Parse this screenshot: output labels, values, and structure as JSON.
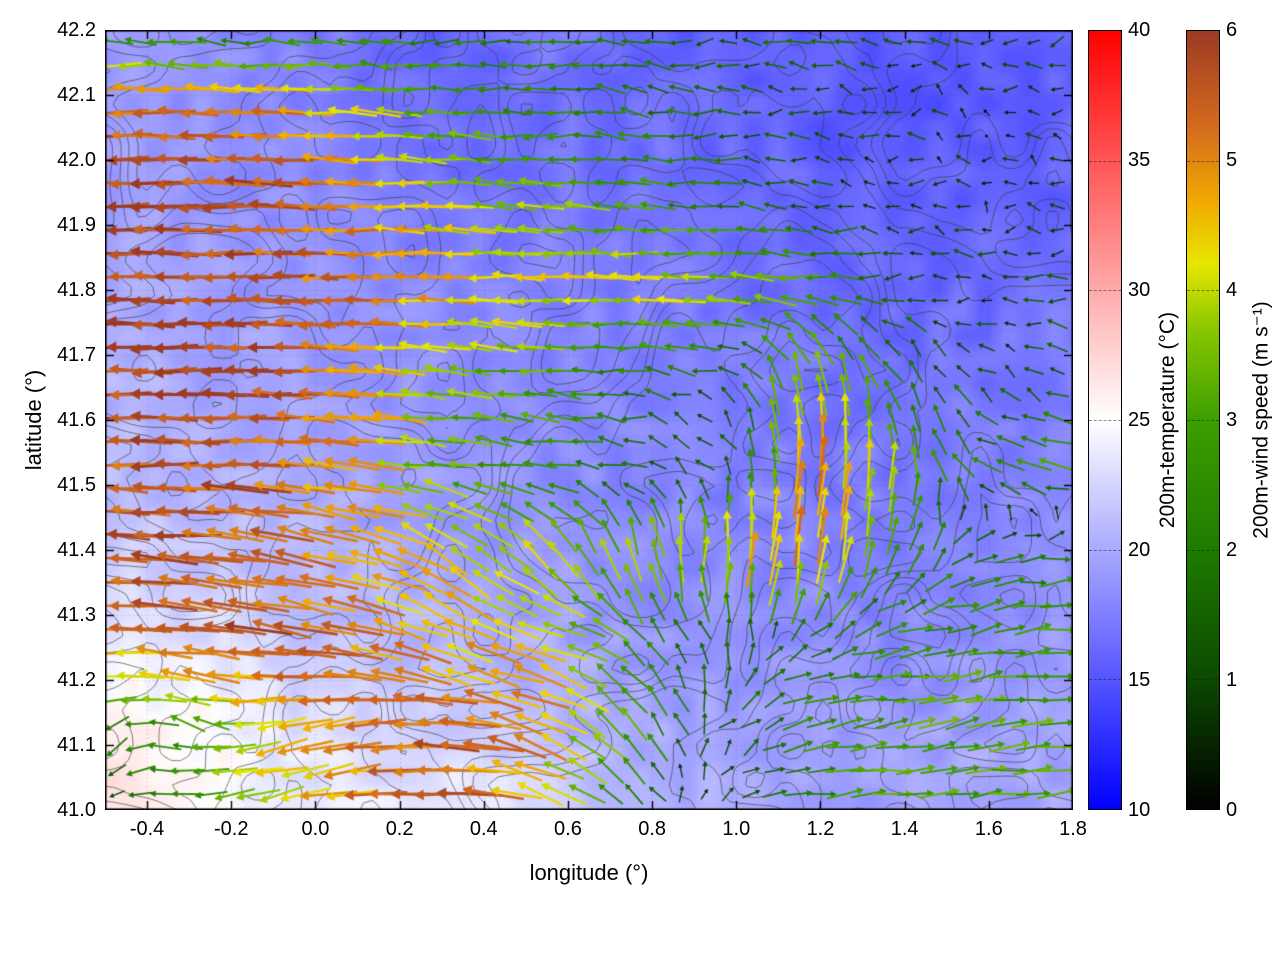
{
  "chart_data": {
    "type": "heatmap",
    "subtype": "vector-field-map-with-contours",
    "title": "",
    "xlabel": "longitude (°)",
    "ylabel": "latitude (°)",
    "xlim": [
      -0.5,
      1.8
    ],
    "ylim": [
      41.0,
      42.2
    ],
    "x_ticks": [
      -0.4,
      -0.2,
      0.0,
      0.2,
      0.4,
      0.6,
      0.8,
      1.0,
      1.2,
      1.4,
      1.6,
      1.8
    ],
    "y_ticks": [
      41.0,
      41.1,
      41.2,
      41.3,
      41.4,
      41.5,
      41.6,
      41.7,
      41.8,
      41.9,
      42.0,
      42.1,
      42.2
    ],
    "grid": true,
    "colorbars": [
      {
        "id": "temperature",
        "label": "200m-temperature (°C)",
        "min": 10,
        "max": 40,
        "ticks": [
          10,
          15,
          20,
          25,
          30,
          35,
          40
        ],
        "stops": [
          [
            0.0,
            "#0000ff"
          ],
          [
            0.5,
            "#ffffff"
          ],
          [
            1.0,
            "#ff0000"
          ]
        ]
      },
      {
        "id": "wind-speed",
        "label": "200m-wind speed (m s⁻¹)",
        "min": 0,
        "max": 6,
        "ticks": [
          0,
          1,
          2,
          3,
          4,
          5,
          6
        ],
        "stops": [
          [
            0.0,
            "#000000"
          ],
          [
            0.17,
            "#0c4a00"
          ],
          [
            0.33,
            "#1e7a00"
          ],
          [
            0.5,
            "#3c9e00"
          ],
          [
            0.62,
            "#8cc800"
          ],
          [
            0.7,
            "#e6e600"
          ],
          [
            0.78,
            "#f0aa00"
          ],
          [
            0.88,
            "#d2691e"
          ],
          [
            1.0,
            "#9c3a24"
          ]
        ]
      }
    ],
    "temperature_field": {
      "units": "degC",
      "lon_range": [
        -0.5,
        1.8
      ],
      "lat_range": [
        41.0,
        42.2
      ],
      "order": "north-to-south",
      "values": [
        [
          19.0,
          18.5,
          18.0,
          16.5,
          16.0,
          17.0,
          16.0,
          15.5,
          16.0,
          15.5,
          15.0,
          15.5
        ],
        [
          19.0,
          18.5,
          18.0,
          17.0,
          16.0,
          16.5,
          16.5,
          16.0,
          15.5,
          15.0,
          15.5,
          16.0
        ],
        [
          19.5,
          19.0,
          18.5,
          18.0,
          17.5,
          17.0,
          17.0,
          16.5,
          16.0,
          15.5,
          16.0,
          16.0
        ],
        [
          20.0,
          19.5,
          19.0,
          18.5,
          18.0,
          18.0,
          17.5,
          17.0,
          16.5,
          16.0,
          16.5,
          17.0
        ],
        [
          20.5,
          20.0,
          19.5,
          19.0,
          18.5,
          18.0,
          18.0,
          17.5,
          17.0,
          16.5,
          17.0,
          17.5
        ],
        [
          21.0,
          20.5,
          20.0,
          19.5,
          19.0,
          18.5,
          18.0,
          18.0,
          17.5,
          17.0,
          17.5,
          18.0
        ],
        [
          22.0,
          21.5,
          21.0,
          20.0,
          19.5,
          19.0,
          18.5,
          18.0,
          18.0,
          17.5,
          18.0,
          18.5
        ],
        [
          24.0,
          23.0,
          22.0,
          21.0,
          20.5,
          20.0,
          19.0,
          18.5,
          18.5,
          18.0,
          18.5,
          19.0
        ],
        [
          26.0,
          25.0,
          23.5,
          22.5,
          21.5,
          21.0,
          20.0,
          19.5,
          19.0,
          19.0,
          19.5,
          19.5
        ],
        [
          26.5,
          25.5,
          24.0,
          23.5,
          24.5,
          23.0,
          20.5,
          20.0,
          19.5,
          19.5,
          20.0,
          20.0
        ]
      ]
    },
    "wind_field": {
      "units": "m/s",
      "lon_range": [
        -0.5,
        1.8
      ],
      "lat_range": [
        41.0,
        42.2
      ],
      "order": "north-to-south",
      "u": [
        [
          -2.5,
          -2.0,
          -2.2,
          -2.5,
          -2.0,
          -2.0,
          -1.5,
          -1.2,
          -1.5,
          -1.0,
          -0.8,
          -1.0
        ],
        [
          -5.5,
          -5.5,
          -5.2,
          -4.0,
          -3.0,
          -2.5,
          -2.0,
          -1.5,
          -1.0,
          -0.8,
          -0.5,
          -0.8
        ],
        [
          -5.8,
          -5.8,
          -5.5,
          -5.0,
          -4.0,
          -3.5,
          -3.0,
          -2.0,
          -1.2,
          -0.6,
          -0.5,
          -1.0
        ],
        [
          -5.8,
          -5.8,
          -5.5,
          -5.2,
          -4.5,
          -4.2,
          -4.2,
          -4.0,
          -3.0,
          -1.5,
          -1.0,
          -1.2
        ],
        [
          -5.8,
          -5.8,
          -5.6,
          -5.0,
          -3.5,
          -3.0,
          -2.0,
          -1.0,
          -1.0,
          -1.0,
          -0.8,
          -1.0
        ],
        [
          -5.5,
          -5.6,
          -5.4,
          -4.5,
          -3.2,
          -2.5,
          -1.5,
          -0.8,
          0.5,
          0.0,
          -2.0,
          -3.5
        ],
        [
          -5.5,
          -5.5,
          -5.0,
          -4.5,
          -3.5,
          -2.5,
          -1.0,
          0.5,
          0.5,
          1.0,
          1.5,
          2.5
        ],
        [
          -5.0,
          -5.5,
          -5.5,
          -5.0,
          -4.0,
          -4.5,
          -2.0,
          -0.5,
          1.5,
          2.5,
          3.0,
          3.0
        ],
        [
          -2.0,
          -3.0,
          -4.5,
          -5.0,
          -5.5,
          -4.5,
          -2.0,
          0.5,
          2.5,
          3.0,
          3.0,
          3.0
        ],
        [
          -1.0,
          -2.5,
          -4.0,
          -5.0,
          -5.5,
          -4.0,
          -1.5,
          1.0,
          2.5,
          3.0,
          3.0,
          2.8
        ]
      ],
      "v": [
        [
          0.0,
          0.3,
          0.0,
          0.2,
          -0.3,
          0.2,
          0.2,
          0.0,
          0.2,
          0.3,
          0.0,
          -0.4
        ],
        [
          0.0,
          0.2,
          0.0,
          0.3,
          0.2,
          0.0,
          0.3,
          0.0,
          0.2,
          0.0,
          0.2,
          0.0
        ],
        [
          0.0,
          0.0,
          0.2,
          0.0,
          0.3,
          0.4,
          0.0,
          0.2,
          0.0,
          0.0,
          0.2,
          0.2
        ],
        [
          0.0,
          0.2,
          0.0,
          0.0,
          0.3,
          0.0,
          0.2,
          0.3,
          0.2,
          0.0,
          0.2,
          0.0
        ],
        [
          0.0,
          0.0,
          0.2,
          0.3,
          0.4,
          0.3,
          0.2,
          0.5,
          4.0,
          2.0,
          0.5,
          0.3
        ],
        [
          0.2,
          0.0,
          0.3,
          0.5,
          0.5,
          0.3,
          0.3,
          1.0,
          5.0,
          3.5,
          1.0,
          0.5
        ],
        [
          0.5,
          0.5,
          1.0,
          1.5,
          2.5,
          3.0,
          3.5,
          4.5,
          5.0,
          2.5,
          0.5,
          0.3
        ],
        [
          0.5,
          0.5,
          1.0,
          1.0,
          2.0,
          1.0,
          2.0,
          1.5,
          1.0,
          0.5,
          0.5,
          0.2
        ],
        [
          -1.5,
          1.0,
          -1.0,
          -0.5,
          0.5,
          2.0,
          2.5,
          1.0,
          0.5,
          0.3,
          0.5,
          0.3
        ],
        [
          -0.5,
          -0.5,
          -1.0,
          -0.5,
          0.0,
          1.5,
          1.0,
          0.5,
          0.3,
          0.2,
          0.3,
          0.2
        ]
      ]
    },
    "contours": {
      "color": "#3a3a3a",
      "levels": [
        -0.35,
        -0.15,
        0.05,
        0.25,
        0.45
      ],
      "seed": 11
    },
    "noise_seed": 7,
    "arrow_grid": {
      "spacing_px": 23.5,
      "length_base": 6.5,
      "length_scale": 10.5
    }
  }
}
